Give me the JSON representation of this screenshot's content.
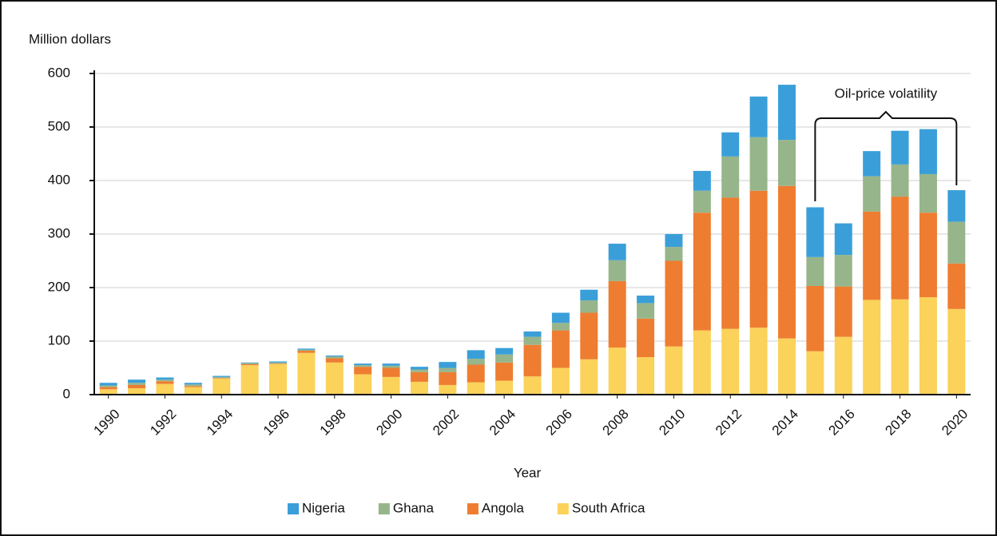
{
  "chart_data": {
    "type": "stacked_bar",
    "y_label": "Million dollars",
    "x_label": "Year",
    "x": [
      1990,
      1991,
      1992,
      1993,
      1994,
      1995,
      1996,
      1997,
      1998,
      1999,
      2000,
      2001,
      2002,
      2003,
      2004,
      2005,
      2006,
      2007,
      2008,
      2009,
      2010,
      2011,
      2012,
      2013,
      2014,
      2015,
      2016,
      2017,
      2018,
      2019,
      2020
    ],
    "xlim": [
      1989.5,
      2020.5
    ],
    "xticks": [
      1990,
      1992,
      1994,
      1996,
      1998,
      2000,
      2002,
      2004,
      2006,
      2008,
      2010,
      2012,
      2014,
      2016,
      2018,
      2020
    ],
    "ylim": [
      0,
      600
    ],
    "yticks": [
      0,
      100,
      200,
      300,
      400,
      500,
      600
    ],
    "grid": true,
    "legend": "bottom",
    "series": [
      {
        "name": "Nigeria",
        "color": "#3a9fd9",
        "values": [
          5,
          6,
          4,
          3,
          2,
          1,
          2,
          2,
          2,
          3,
          4,
          5,
          11,
          16,
          12,
          10,
          19,
          20,
          31,
          14,
          24,
          37,
          45,
          76,
          103,
          93,
          59,
          47,
          63,
          84,
          59
        ]
      },
      {
        "name": "Ghana",
        "color": "#97b58a",
        "values": [
          3,
          4,
          3,
          3,
          2,
          2,
          2,
          2,
          3,
          3,
          4,
          5,
          8,
          11,
          15,
          15,
          14,
          23,
          39,
          29,
          26,
          41,
          77,
          100,
          86,
          54,
          59,
          66,
          60,
          72,
          78
        ]
      },
      {
        "name": "Angola",
        "color": "#ee7d31",
        "values": [
          4,
          6,
          5,
          2,
          1,
          2,
          1,
          4,
          8,
          14,
          17,
          18,
          24,
          33,
          34,
          59,
          70,
          87,
          124,
          72,
          160,
          220,
          245,
          256,
          285,
          122,
          94,
          165,
          192,
          158,
          85
        ]
      },
      {
        "name": "South Africa",
        "color": "#fbd25a",
        "values": [
          10,
          12,
          20,
          14,
          30,
          55,
          57,
          78,
          60,
          38,
          33,
          24,
          18,
          23,
          26,
          34,
          50,
          66,
          88,
          70,
          90,
          120,
          123,
          125,
          105,
          81,
          108,
          177,
          178,
          182,
          160
        ]
      }
    ],
    "annotation": {
      "text": "Oil-price volatility",
      "x": [
        2015,
        2020
      ]
    }
  }
}
